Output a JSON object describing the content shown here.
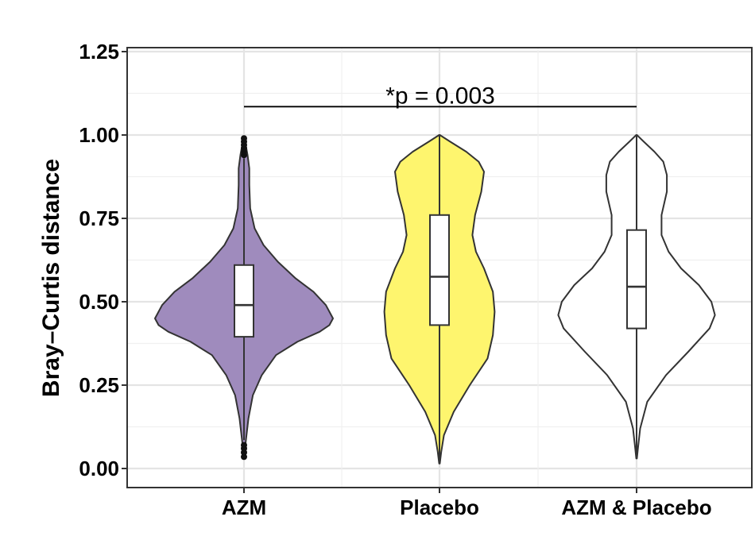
{
  "chart_data": {
    "type": "violin",
    "title": "",
    "xlabel": "",
    "ylabel": "Bray–Curtis distance",
    "ylim": [
      0,
      1.25
    ],
    "yticks": [
      0.0,
      0.25,
      0.5,
      0.75,
      1.0,
      1.25
    ],
    "ytick_labels": [
      "0.00",
      "0.25",
      "0.50",
      "0.75",
      "1.00",
      "1.25"
    ],
    "grid": true,
    "categories": [
      "AZM",
      "Placebo",
      "AZM & Placebo"
    ],
    "series": [
      {
        "category": "AZM",
        "color": "#9f8bbd",
        "box": {
          "q1": 0.395,
          "median": 0.49,
          "q3": 0.61,
          "whisker_low": 0.085,
          "whisker_high": 0.93
        },
        "outliers": [
          0.035,
          0.048,
          0.06,
          0.07,
          0.94,
          0.95,
          0.96,
          0.97,
          0.98,
          0.99
        ],
        "density": [
          [
            0.035,
            0.004
          ],
          [
            0.08,
            0.02
          ],
          [
            0.15,
            0.05
          ],
          [
            0.22,
            0.1
          ],
          [
            0.28,
            0.2
          ],
          [
            0.34,
            0.36
          ],
          [
            0.38,
            0.6
          ],
          [
            0.41,
            0.85
          ],
          [
            0.43,
            0.96
          ],
          [
            0.45,
            1.0
          ],
          [
            0.49,
            0.92
          ],
          [
            0.53,
            0.78
          ],
          [
            0.57,
            0.58
          ],
          [
            0.62,
            0.38
          ],
          [
            0.67,
            0.22
          ],
          [
            0.72,
            0.12
          ],
          [
            0.78,
            0.07
          ],
          [
            0.85,
            0.06
          ],
          [
            0.9,
            0.06
          ],
          [
            0.94,
            0.04
          ],
          [
            0.97,
            0.02
          ],
          [
            0.995,
            0.005
          ]
        ]
      },
      {
        "category": "Placebo",
        "color": "#fef56e",
        "box": {
          "q1": 0.43,
          "median": 0.575,
          "q3": 0.76,
          "whisker_low": 0.015,
          "whisker_high": 1.0
        },
        "outliers": [],
        "density": [
          [
            0.015,
            0.004
          ],
          [
            0.05,
            0.02
          ],
          [
            0.1,
            0.05
          ],
          [
            0.17,
            0.16
          ],
          [
            0.25,
            0.34
          ],
          [
            0.33,
            0.54
          ],
          [
            0.4,
            0.6
          ],
          [
            0.47,
            0.62
          ],
          [
            0.53,
            0.6
          ],
          [
            0.6,
            0.5
          ],
          [
            0.65,
            0.41
          ],
          [
            0.7,
            0.37
          ],
          [
            0.76,
            0.4
          ],
          [
            0.83,
            0.47
          ],
          [
            0.89,
            0.5
          ],
          [
            0.92,
            0.44
          ],
          [
            0.95,
            0.3
          ],
          [
            0.98,
            0.12
          ],
          [
            1.0,
            0.004
          ]
        ]
      },
      {
        "category": "AZM & Placebo",
        "color": "#ffffff",
        "box": {
          "q1": 0.42,
          "median": 0.545,
          "q3": 0.715,
          "whisker_low": 0.03,
          "whisker_high": 1.0
        },
        "outliers": [],
        "density": [
          [
            0.03,
            0.004
          ],
          [
            0.06,
            0.015
          ],
          [
            0.12,
            0.04
          ],
          [
            0.2,
            0.12
          ],
          [
            0.28,
            0.33
          ],
          [
            0.35,
            0.58
          ],
          [
            0.42,
            0.82
          ],
          [
            0.46,
            0.88
          ],
          [
            0.5,
            0.84
          ],
          [
            0.55,
            0.7
          ],
          [
            0.6,
            0.5
          ],
          [
            0.65,
            0.36
          ],
          [
            0.7,
            0.28
          ],
          [
            0.76,
            0.28
          ],
          [
            0.83,
            0.34
          ],
          [
            0.88,
            0.34
          ],
          [
            0.92,
            0.3
          ],
          [
            0.95,
            0.2
          ],
          [
            0.98,
            0.08
          ],
          [
            1.0,
            0.004
          ]
        ]
      }
    ],
    "annotations": [
      {
        "text": "*p = 0.003",
        "y": 1.085,
        "from_category": 0,
        "to_category": 2
      }
    ]
  }
}
